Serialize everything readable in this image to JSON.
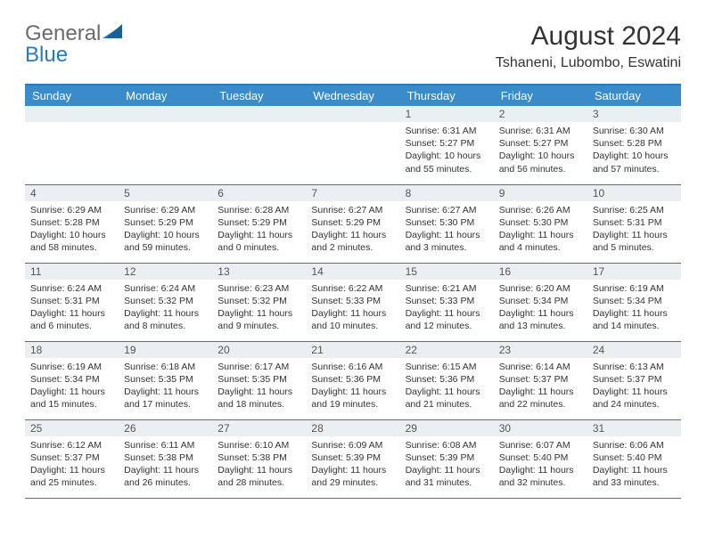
{
  "logo": {
    "part1": "General",
    "part2": "Blue"
  },
  "title": "August 2024",
  "location": "Tshaneni, Lubombo, Eswatini",
  "colors": {
    "header_bg": "#3a8bc9",
    "header_text": "#ffffff",
    "border": "#2a7ab9",
    "daynum_bg": "#eceff1",
    "text": "#333333"
  },
  "weekdays": [
    "Sunday",
    "Monday",
    "Tuesday",
    "Wednesday",
    "Thursday",
    "Friday",
    "Saturday"
  ],
  "weeks": [
    [
      null,
      null,
      null,
      null,
      {
        "n": "1",
        "sunrise": "6:31 AM",
        "sunset": "5:27 PM",
        "daylight": "10 hours and 55 minutes."
      },
      {
        "n": "2",
        "sunrise": "6:31 AM",
        "sunset": "5:27 PM",
        "daylight": "10 hours and 56 minutes."
      },
      {
        "n": "3",
        "sunrise": "6:30 AM",
        "sunset": "5:28 PM",
        "daylight": "10 hours and 57 minutes."
      }
    ],
    [
      {
        "n": "4",
        "sunrise": "6:29 AM",
        "sunset": "5:28 PM",
        "daylight": "10 hours and 58 minutes."
      },
      {
        "n": "5",
        "sunrise": "6:29 AM",
        "sunset": "5:29 PM",
        "daylight": "10 hours and 59 minutes."
      },
      {
        "n": "6",
        "sunrise": "6:28 AM",
        "sunset": "5:29 PM",
        "daylight": "11 hours and 0 minutes."
      },
      {
        "n": "7",
        "sunrise": "6:27 AM",
        "sunset": "5:29 PM",
        "daylight": "11 hours and 2 minutes."
      },
      {
        "n": "8",
        "sunrise": "6:27 AM",
        "sunset": "5:30 PM",
        "daylight": "11 hours and 3 minutes."
      },
      {
        "n": "9",
        "sunrise": "6:26 AM",
        "sunset": "5:30 PM",
        "daylight": "11 hours and 4 minutes."
      },
      {
        "n": "10",
        "sunrise": "6:25 AM",
        "sunset": "5:31 PM",
        "daylight": "11 hours and 5 minutes."
      }
    ],
    [
      {
        "n": "11",
        "sunrise": "6:24 AM",
        "sunset": "5:31 PM",
        "daylight": "11 hours and 6 minutes."
      },
      {
        "n": "12",
        "sunrise": "6:24 AM",
        "sunset": "5:32 PM",
        "daylight": "11 hours and 8 minutes."
      },
      {
        "n": "13",
        "sunrise": "6:23 AM",
        "sunset": "5:32 PM",
        "daylight": "11 hours and 9 minutes."
      },
      {
        "n": "14",
        "sunrise": "6:22 AM",
        "sunset": "5:33 PM",
        "daylight": "11 hours and 10 minutes."
      },
      {
        "n": "15",
        "sunrise": "6:21 AM",
        "sunset": "5:33 PM",
        "daylight": "11 hours and 12 minutes."
      },
      {
        "n": "16",
        "sunrise": "6:20 AM",
        "sunset": "5:34 PM",
        "daylight": "11 hours and 13 minutes."
      },
      {
        "n": "17",
        "sunrise": "6:19 AM",
        "sunset": "5:34 PM",
        "daylight": "11 hours and 14 minutes."
      }
    ],
    [
      {
        "n": "18",
        "sunrise": "6:19 AM",
        "sunset": "5:34 PM",
        "daylight": "11 hours and 15 minutes."
      },
      {
        "n": "19",
        "sunrise": "6:18 AM",
        "sunset": "5:35 PM",
        "daylight": "11 hours and 17 minutes."
      },
      {
        "n": "20",
        "sunrise": "6:17 AM",
        "sunset": "5:35 PM",
        "daylight": "11 hours and 18 minutes."
      },
      {
        "n": "21",
        "sunrise": "6:16 AM",
        "sunset": "5:36 PM",
        "daylight": "11 hours and 19 minutes."
      },
      {
        "n": "22",
        "sunrise": "6:15 AM",
        "sunset": "5:36 PM",
        "daylight": "11 hours and 21 minutes."
      },
      {
        "n": "23",
        "sunrise": "6:14 AM",
        "sunset": "5:37 PM",
        "daylight": "11 hours and 22 minutes."
      },
      {
        "n": "24",
        "sunrise": "6:13 AM",
        "sunset": "5:37 PM",
        "daylight": "11 hours and 24 minutes."
      }
    ],
    [
      {
        "n": "25",
        "sunrise": "6:12 AM",
        "sunset": "5:37 PM",
        "daylight": "11 hours and 25 minutes."
      },
      {
        "n": "26",
        "sunrise": "6:11 AM",
        "sunset": "5:38 PM",
        "daylight": "11 hours and 26 minutes."
      },
      {
        "n": "27",
        "sunrise": "6:10 AM",
        "sunset": "5:38 PM",
        "daylight": "11 hours and 28 minutes."
      },
      {
        "n": "28",
        "sunrise": "6:09 AM",
        "sunset": "5:39 PM",
        "daylight": "11 hours and 29 minutes."
      },
      {
        "n": "29",
        "sunrise": "6:08 AM",
        "sunset": "5:39 PM",
        "daylight": "11 hours and 31 minutes."
      },
      {
        "n": "30",
        "sunrise": "6:07 AM",
        "sunset": "5:40 PM",
        "daylight": "11 hours and 32 minutes."
      },
      {
        "n": "31",
        "sunrise": "6:06 AM",
        "sunset": "5:40 PM",
        "daylight": "11 hours and 33 minutes."
      }
    ]
  ],
  "labels": {
    "sunrise": "Sunrise:",
    "sunset": "Sunset:",
    "daylight": "Daylight:"
  }
}
